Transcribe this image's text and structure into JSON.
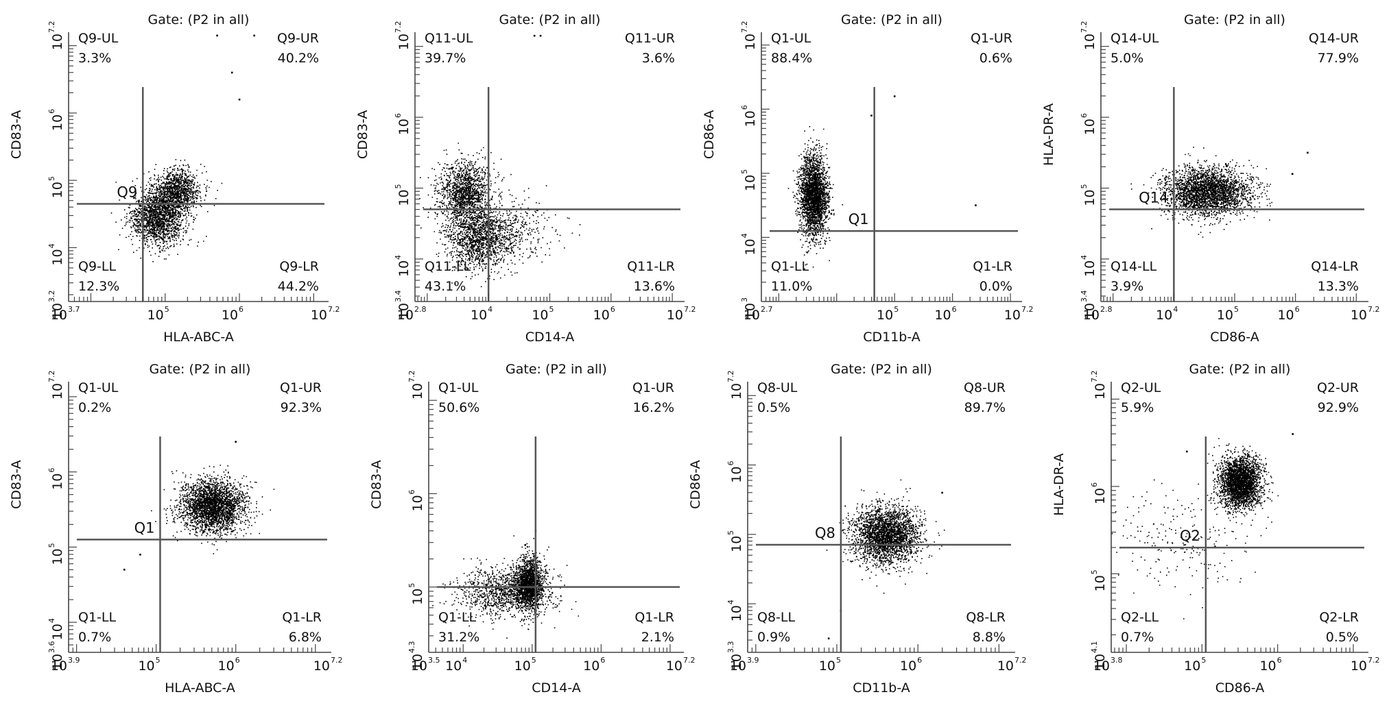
{
  "figure": {
    "background": "#ffffff",
    "dot_color": "#000000",
    "axis_color": "#444444",
    "gate_line_color": "#555555"
  },
  "chart_data": [
    {
      "type": "scatter",
      "title": "Gate: (P2 in all)",
      "xlabel": "HLA-ABC-A",
      "ylabel": "CD83-A",
      "xlim": [
        3.7,
        7.2
      ],
      "ylim": [
        3.2,
        7.2
      ],
      "log_axes": true,
      "x_ticks": [
        {
          "v": 3.7,
          "base": "10",
          "exp": "3.7"
        },
        {
          "v": 5,
          "base": "10",
          "exp": "5"
        },
        {
          "v": 6,
          "base": "10",
          "exp": "6"
        },
        {
          "v": 7.2,
          "base": "10",
          "exp": "7.2"
        }
      ],
      "y_ticks": [
        {
          "v": 3.2,
          "base": "10",
          "exp": "3.2"
        },
        {
          "v": 4,
          "base": "10",
          "exp": "4"
        },
        {
          "v": 5,
          "base": "10",
          "exp": "5"
        },
        {
          "v": 6,
          "base": "10",
          "exp": "6"
        },
        {
          "v": 7.2,
          "base": "10",
          "exp": "7.2"
        }
      ],
      "gate": {
        "name": "Q9",
        "x": 4.7,
        "y": 4.65
      },
      "quadrants": {
        "UL": {
          "name": "Q9-UL",
          "pct": "3.3%"
        },
        "UR": {
          "name": "Q9-UR",
          "pct": "40.2%"
        },
        "LL": {
          "name": "Q9-LL",
          "pct": "12.3%"
        },
        "LR": {
          "name": "Q9-LR",
          "pct": "44.2%"
        }
      },
      "clusters": [
        {
          "x": 4.9,
          "y": 4.45,
          "sx": 0.18,
          "sy": 0.2,
          "n": 1700
        },
        {
          "x": 5.15,
          "y": 4.85,
          "sx": 0.16,
          "sy": 0.16,
          "n": 1100
        }
      ],
      "outliers": [
        {
          "x": 5.9,
          "y": 6.6
        },
        {
          "x": 6.0,
          "y": 6.2
        },
        {
          "x": 5.7,
          "y": 7.15
        },
        {
          "x": 6.2,
          "y": 7.15
        }
      ]
    },
    {
      "type": "scatter",
      "title": "Gate: (P2 in all)",
      "xlabel": "CD14-A",
      "ylabel": "CD83-A",
      "xlim": [
        2.8,
        7.2
      ],
      "ylim": [
        3.4,
        7.2
      ],
      "log_axes": true,
      "x_ticks": [
        {
          "v": 2.8,
          "base": "10",
          "exp": "2.8"
        },
        {
          "v": 4,
          "base": "10",
          "exp": "4"
        },
        {
          "v": 5,
          "base": "10",
          "exp": "5"
        },
        {
          "v": 6,
          "base": "10",
          "exp": "6"
        },
        {
          "v": 7.2,
          "base": "10",
          "exp": "7.2"
        }
      ],
      "y_ticks": [
        {
          "v": 3.4,
          "base": "10",
          "exp": "3.4"
        },
        {
          "v": 4,
          "base": "10",
          "exp": "4"
        },
        {
          "v": 5,
          "base": "10",
          "exp": "5"
        },
        {
          "v": 6,
          "base": "10",
          "exp": "6"
        },
        {
          "v": 7.2,
          "base": "10",
          "exp": "7.2"
        }
      ],
      "gate": {
        "name": "Q11",
        "x": 4.0,
        "y": 4.7
      },
      "quadrants": {
        "UL": {
          "name": "Q11-UL",
          "pct": "39.7%"
        },
        "UR": {
          "name": "Q11-UR",
          "pct": "3.6%"
        },
        "LL": {
          "name": "Q11-LL",
          "pct": "43.1%"
        },
        "LR": {
          "name": "Q11-LR",
          "pct": "13.6%"
        }
      },
      "clusters": [
        {
          "x": 3.6,
          "y": 4.95,
          "sx": 0.22,
          "sy": 0.22,
          "n": 1300
        },
        {
          "x": 3.8,
          "y": 4.3,
          "sx": 0.25,
          "sy": 0.22,
          "n": 1300
        },
        {
          "x": 4.3,
          "y": 4.4,
          "sx": 0.35,
          "sy": 0.2,
          "n": 500
        }
      ],
      "outliers": [
        {
          "x": 4.75,
          "y": 7.15
        },
        {
          "x": 4.85,
          "y": 7.15
        }
      ]
    },
    {
      "type": "scatter",
      "title": "Gate: (P2 in all)",
      "xlabel": "CD11b-A",
      "ylabel": "CD86-A",
      "xlim": [
        2.7,
        7.2
      ],
      "ylim": [
        3,
        7.2
      ],
      "log_axes": true,
      "x_ticks": [
        {
          "v": 2.7,
          "base": "10",
          "exp": "2.7"
        },
        {
          "v": 5,
          "base": "10",
          "exp": "5"
        },
        {
          "v": 6,
          "base": "10",
          "exp": "6"
        },
        {
          "v": 7.2,
          "base": "10",
          "exp": "7.2"
        }
      ],
      "y_ticks": [
        {
          "v": 3,
          "base": "10",
          "exp": "3"
        },
        {
          "v": 4,
          "base": "10",
          "exp": "4"
        },
        {
          "v": 5,
          "base": "10",
          "exp": "5"
        },
        {
          "v": 6,
          "base": "10",
          "exp": "6"
        },
        {
          "v": 7.2,
          "base": "10",
          "exp": "7.2"
        }
      ],
      "gate": {
        "name": "Q1",
        "x": 4.65,
        "y": 4.1
      },
      "quadrants": {
        "UL": {
          "name": "Q1-UL",
          "pct": "88.4%"
        },
        "UR": {
          "name": "Q1-UR",
          "pct": "0.6%"
        },
        "LL": {
          "name": "Q1-LL",
          "pct": "11.0%"
        },
        "LR": {
          "name": "Q1-LR",
          "pct": "0.0%"
        }
      },
      "clusters": [
        {
          "x": 3.6,
          "y": 4.65,
          "sx": 0.12,
          "sy": 0.32,
          "n": 2600
        }
      ],
      "outliers": [
        {
          "x": 5.0,
          "y": 6.2
        },
        {
          "x": 6.4,
          "y": 4.5
        },
        {
          "x": 4.6,
          "y": 5.9
        }
      ]
    },
    {
      "type": "scatter",
      "title": "Gate: (P2 in all)",
      "xlabel": "CD86-A",
      "ylabel": "HLA-DR-A",
      "xlim": [
        2.8,
        7.2
      ],
      "ylim": [
        3.4,
        7.2
      ],
      "log_axes": true,
      "x_ticks": [
        {
          "v": 2.8,
          "base": "10",
          "exp": "2.8"
        },
        {
          "v": 4,
          "base": "10",
          "exp": "4"
        },
        {
          "v": 5,
          "base": "10",
          "exp": "5"
        },
        {
          "v": 6,
          "base": "10",
          "exp": "6"
        },
        {
          "v": 7.2,
          "base": "10",
          "exp": "7.2"
        }
      ],
      "y_ticks": [
        {
          "v": 3.4,
          "base": "10",
          "exp": "3.4"
        },
        {
          "v": 4,
          "base": "10",
          "exp": "4"
        },
        {
          "v": 5,
          "base": "10",
          "exp": "5"
        },
        {
          "v": 6,
          "base": "10",
          "exp": "6"
        },
        {
          "v": 7.2,
          "base": "10",
          "exp": "7.2"
        }
      ],
      "gate": {
        "name": "Q14",
        "x": 4.0,
        "y": 4.7
      },
      "quadrants": {
        "UL": {
          "name": "Q14-UL",
          "pct": "5.0%"
        },
        "UR": {
          "name": "Q14-UR",
          "pct": "77.9%"
        },
        "LL": {
          "name": "Q14-LL",
          "pct": "3.9%"
        },
        "LR": {
          "name": "Q14-LR",
          "pct": "13.3%"
        }
      },
      "clusters": [
        {
          "x": 4.55,
          "y": 4.95,
          "sx": 0.35,
          "sy": 0.17,
          "n": 2800
        }
      ],
      "outliers": [
        {
          "x": 6.2,
          "y": 5.5
        },
        {
          "x": 5.95,
          "y": 5.2
        }
      ]
    },
    {
      "type": "scatter",
      "title": "Gate: (P2 in all)",
      "xlabel": "HLA-ABC-A",
      "ylabel": "CD83-A",
      "xlim": [
        3.9,
        7.2
      ],
      "ylim": [
        3.6,
        7.2
      ],
      "log_axes": true,
      "x_ticks": [
        {
          "v": 3.9,
          "base": "10",
          "exp": "3.9"
        },
        {
          "v": 5,
          "base": "10",
          "exp": "5"
        },
        {
          "v": 6,
          "base": "10",
          "exp": "6"
        },
        {
          "v": 7.2,
          "base": "10",
          "exp": "7.2"
        }
      ],
      "y_ticks": [
        {
          "v": 3.6,
          "base": "10",
          "exp": "3.6"
        },
        {
          "v": 4,
          "base": "10",
          "exp": "4"
        },
        {
          "v": 5,
          "base": "10",
          "exp": "5"
        },
        {
          "v": 6,
          "base": "10",
          "exp": "6"
        },
        {
          "v": 7.2,
          "base": "10",
          "exp": "7.2"
        }
      ],
      "gate": {
        "name": "Q1",
        "x": 5.05,
        "y": 5.1
      },
      "quadrants": {
        "UL": {
          "name": "Q1-UL",
          "pct": "0.2%"
        },
        "UR": {
          "name": "Q1-UR",
          "pct": "92.3%"
        },
        "LL": {
          "name": "Q1-LL",
          "pct": "0.7%"
        },
        "LR": {
          "name": "Q1-LR",
          "pct": "6.8%"
        }
      },
      "clusters": [
        {
          "x": 5.7,
          "y": 5.55,
          "sx": 0.2,
          "sy": 0.17,
          "n": 2700
        }
      ],
      "outliers": [
        {
          "x": 6.0,
          "y": 6.4
        },
        {
          "x": 4.8,
          "y": 4.9
        },
        {
          "x": 4.6,
          "y": 4.7
        }
      ]
    },
    {
      "type": "scatter",
      "title": "Gate: (P2 in all)",
      "xlabel": "CD14-A",
      "ylabel": "CD83-A",
      "xlim": [
        3.5,
        7.2
      ],
      "ylim": [
        4.3,
        7.2
      ],
      "log_axes": true,
      "x_ticks": [
        {
          "v": 3.5,
          "base": "10",
          "exp": "3.5"
        },
        {
          "v": 4,
          "base": "10",
          "exp": "4"
        },
        {
          "v": 5,
          "base": "10",
          "exp": "5"
        },
        {
          "v": 6,
          "base": "10",
          "exp": "6"
        },
        {
          "v": 7.2,
          "base": "10",
          "exp": "7.2"
        }
      ],
      "y_ticks": [
        {
          "v": 4.3,
          "base": "10",
          "exp": "4.3"
        },
        {
          "v": 5,
          "base": "10",
          "exp": "5"
        },
        {
          "v": 6,
          "base": "10",
          "exp": "6"
        },
        {
          "v": 7.2,
          "base": "10",
          "exp": "7.2"
        }
      ],
      "gate": {
        "name": "",
        "x": 5.05,
        "y": 5.0
      },
      "quadrants": {
        "UL": {
          "name": "Q1-UL",
          "pct": "50.6%"
        },
        "UR": {
          "name": "Q1-UR",
          "pct": "16.2%"
        },
        "LL": {
          "name": "Q1-LL",
          "pct": "31.2%"
        },
        "LR": {
          "name": "Q1-LR",
          "pct": "2.1%"
        }
      },
      "clusters": [
        {
          "x": 4.95,
          "y": 5.05,
          "sx": 0.1,
          "sy": 0.14,
          "n": 1600
        },
        {
          "x": 4.6,
          "y": 4.95,
          "sx": 0.35,
          "sy": 0.13,
          "n": 1100
        }
      ],
      "outliers": [
        {
          "x": 5.05,
          "y": 5.6
        },
        {
          "x": 4.9,
          "y": 5.45
        }
      ]
    },
    {
      "type": "scatter",
      "title": "Gate: (P2 in all)",
      "xlabel": "CD11b-A",
      "ylabel": "CD86-A",
      "xlim": [
        3.9,
        7.2
      ],
      "ylim": [
        3.3,
        7.2
      ],
      "log_axes": true,
      "x_ticks": [
        {
          "v": 3.9,
          "base": "10",
          "exp": "3.9"
        },
        {
          "v": 5,
          "base": "10",
          "exp": "5"
        },
        {
          "v": 6,
          "base": "10",
          "exp": "6"
        },
        {
          "v": 7.2,
          "base": "10",
          "exp": "7.2"
        }
      ],
      "y_ticks": [
        {
          "v": 3.3,
          "base": "10",
          "exp": "3.3"
        },
        {
          "v": 4,
          "base": "10",
          "exp": "4"
        },
        {
          "v": 5,
          "base": "10",
          "exp": "5"
        },
        {
          "v": 6,
          "base": "10",
          "exp": "6"
        },
        {
          "v": 7.2,
          "base": "10",
          "exp": "7.2"
        }
      ],
      "gate": {
        "name": "Q8",
        "x": 5.05,
        "y": 4.85
      },
      "quadrants": {
        "UL": {
          "name": "Q8-UL",
          "pct": "0.5%"
        },
        "UR": {
          "name": "Q8-UR",
          "pct": "89.7%"
        },
        "LL": {
          "name": "Q8-LL",
          "pct": "0.9%"
        },
        "LR": {
          "name": "Q8-LR",
          "pct": "8.8%"
        }
      },
      "clusters": [
        {
          "x": 5.6,
          "y": 5.0,
          "sx": 0.2,
          "sy": 0.2,
          "n": 2700
        }
      ],
      "outliers": [
        {
          "x": 6.3,
          "y": 5.6
        },
        {
          "x": 5.05,
          "y": 3.9
        },
        {
          "x": 4.9,
          "y": 3.5
        }
      ]
    },
    {
      "type": "scatter",
      "title": "Gate: (P2 in all)",
      "xlabel": "CD86-A",
      "ylabel": "HLA-DR-A",
      "xlim": [
        3.8,
        7.2
      ],
      "ylim": [
        4.1,
        7.2
      ],
      "log_axes": true,
      "x_ticks": [
        {
          "v": 3.8,
          "base": "10",
          "exp": "3.8"
        },
        {
          "v": 5,
          "base": "10",
          "exp": "5"
        },
        {
          "v": 6,
          "base": "10",
          "exp": "6"
        },
        {
          "v": 7.2,
          "base": "10",
          "exp": "7.2"
        }
      ],
      "y_ticks": [
        {
          "v": 4.1,
          "base": "10",
          "exp": "4.1"
        },
        {
          "v": 5,
          "base": "10",
          "exp": "5"
        },
        {
          "v": 6,
          "base": "10",
          "exp": "6"
        },
        {
          "v": 7.2,
          "base": "10",
          "exp": "7.2"
        }
      ],
      "gate": {
        "name": "Q2",
        "x": 5.05,
        "y": 5.3
      },
      "quadrants": {
        "UL": {
          "name": "Q2-UL",
          "pct": "5.9%"
        },
        "UR": {
          "name": "Q2-UR",
          "pct": "92.9%"
        },
        "LL": {
          "name": "Q2-LL",
          "pct": "0.7%"
        },
        "LR": {
          "name": "Q2-LR",
          "pct": "0.5%"
        }
      },
      "clusters": [
        {
          "x": 5.5,
          "y": 6.05,
          "sx": 0.14,
          "sy": 0.15,
          "n": 2700
        },
        {
          "x": 4.7,
          "y": 5.4,
          "sx": 0.45,
          "sy": 0.3,
          "n": 220
        }
      ],
      "outliers": [
        {
          "x": 4.8,
          "y": 6.4
        },
        {
          "x": 6.2,
          "y": 6.6
        }
      ]
    }
  ]
}
